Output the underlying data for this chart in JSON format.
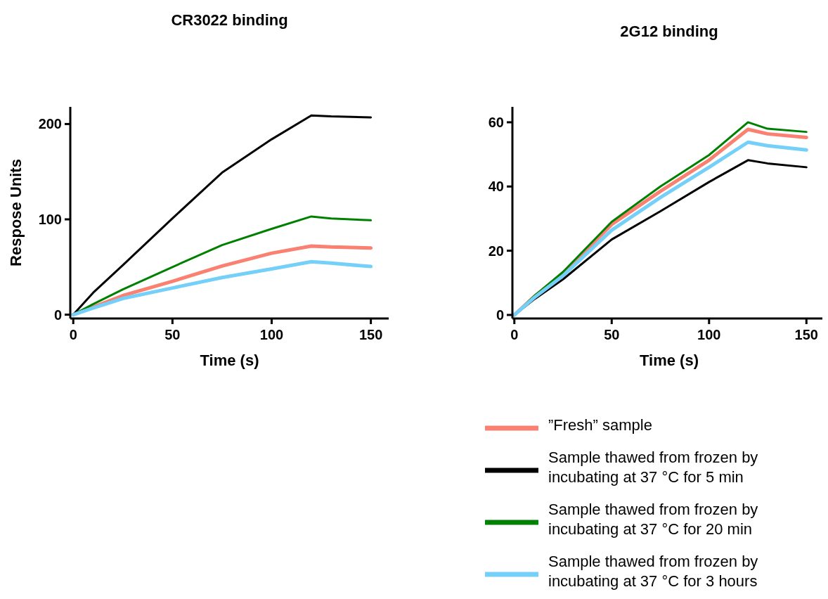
{
  "chart_data": [
    {
      "type": "line",
      "title": "CR3022 binding",
      "xlabel": "Time (s)",
      "ylabel": "Respose Units",
      "xlim": [
        -1.5,
        159
      ],
      "ylim": [
        -4,
        218
      ],
      "xticks": [
        0,
        50,
        100,
        150
      ],
      "yticks": [
        0,
        100,
        200
      ],
      "grid": false,
      "legend": "bottom right",
      "line_style": "solid",
      "x": [
        0,
        10,
        25,
        50,
        75,
        100,
        120,
        130,
        150
      ],
      "series": [
        {
          "name": "”Fresh” sample",
          "color": "#fa8072",
          "values": [
            0,
            8,
            20,
            35,
            51,
            64.5,
            72,
            71,
            70
          ]
        },
        {
          "name": "Sample thawed from frozen by incubating at 37 °C for 5 min",
          "color": "#000000",
          "values": [
            0,
            23,
            52,
            101,
            149,
            184,
            209,
            208,
            207
          ]
        },
        {
          "name": "Sample thawed from frozen by incubating at 37 °C for 20 min",
          "color": "#008000",
          "values": [
            0,
            11,
            26.5,
            50,
            73,
            90,
            103,
            101,
            99
          ]
        },
        {
          "name": "Sample thawed from frozen by incubating at 37 °C for 3 hours",
          "color": "#74d0f8",
          "values": [
            0,
            7,
            17,
            28,
            39,
            48,
            55.5,
            54,
            50.5
          ]
        }
      ]
    },
    {
      "type": "line",
      "title": "2G12 binding",
      "xlabel": "Time (s)",
      "xlim": [
        -1,
        160
      ],
      "ylim": [
        -1.1,
        64.8
      ],
      "xticks": [
        0,
        50,
        100,
        150
      ],
      "yticks": [
        0,
        20,
        40,
        60
      ],
      "grid": false,
      "line_style": "solid",
      "x": [
        0,
        10,
        25,
        50,
        75,
        100,
        120,
        130,
        150
      ],
      "series": [
        {
          "color": "#fa8072",
          "values": [
            0,
            5.6,
            12.9,
            28.2,
            38.5,
            48.2,
            57.8,
            56.4,
            55.3
          ]
        },
        {
          "color": "#000000",
          "values": [
            0,
            4.8,
            11.1,
            23.5,
            32.3,
            41.4,
            48.2,
            47.2,
            46
          ]
        },
        {
          "color": "#008000",
          "values": [
            0,
            5.8,
            13.4,
            29,
            40,
            49.8,
            60,
            58,
            57
          ]
        },
        {
          "color": "#74d0f8",
          "values": [
            0,
            5.3,
            12.2,
            26.4,
            36.6,
            46,
            53.8,
            52.7,
            51.4
          ]
        }
      ]
    }
  ]
}
